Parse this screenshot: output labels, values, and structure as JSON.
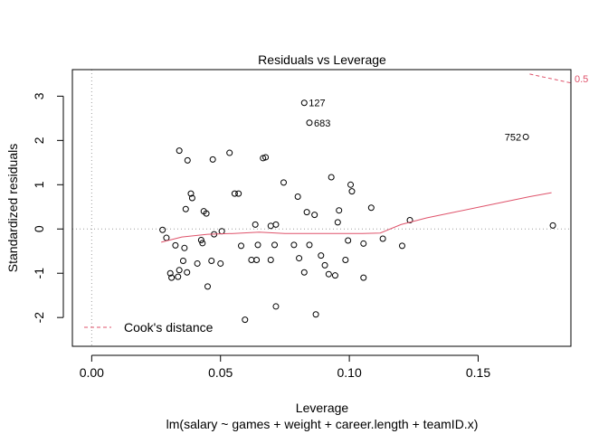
{
  "chart_data": {
    "type": "scatter",
    "title": "Residuals vs Leverage",
    "xlabel": "Leverage",
    "ylabel": "Standardized residuals",
    "subtitle": "lm(salary ~ games + weight + career.length + teamID.x)",
    "xlim": [
      -0.0075,
      0.186
    ],
    "ylim": [
      -2.65,
      3.6
    ],
    "x_ticks": [
      0.0,
      0.05,
      0.1,
      0.15
    ],
    "x_tick_labels": [
      "0.00",
      "0.05",
      "0.10",
      "0.15"
    ],
    "y_ticks": [
      -2,
      -1,
      0,
      1,
      2,
      3
    ],
    "y_tick_labels": [
      "-2",
      "-1",
      "0",
      "1",
      "2",
      "3"
    ],
    "grid": false,
    "reference_lines": {
      "horizontal_y": 0,
      "vertical_x": 0,
      "style": "dotted grey"
    },
    "legend": {
      "position": "bottom-left",
      "entries": [
        "Cook's distance"
      ]
    },
    "cooks_contour": {
      "label": "0.5",
      "color": "#DF536B",
      "points": [
        [
          0.17,
          3.5
        ],
        [
          0.186,
          3.3
        ]
      ]
    },
    "smoother": {
      "color": "#DF536B",
      "points": [
        [
          0.027,
          -0.3
        ],
        [
          0.035,
          -0.18
        ],
        [
          0.045,
          -0.12
        ],
        [
          0.055,
          -0.1
        ],
        [
          0.065,
          -0.07
        ],
        [
          0.075,
          -0.1
        ],
        [
          0.085,
          -0.1
        ],
        [
          0.095,
          -0.1
        ],
        [
          0.105,
          -0.1
        ],
        [
          0.112,
          -0.09
        ],
        [
          0.12,
          0.1
        ],
        [
          0.13,
          0.25
        ],
        [
          0.14,
          0.37
        ],
        [
          0.15,
          0.49
        ],
        [
          0.16,
          0.61
        ],
        [
          0.17,
          0.73
        ],
        [
          0.1785,
          0.82
        ]
      ]
    },
    "points": [
      [
        0.0275,
        -0.02
      ],
      [
        0.029,
        -0.2
      ],
      [
        0.0305,
        -1.0
      ],
      [
        0.031,
        -1.1
      ],
      [
        0.0325,
        -0.37
      ],
      [
        0.0335,
        -1.08
      ],
      [
        0.034,
        -0.93
      ],
      [
        0.034,
        1.77
      ],
      [
        0.0355,
        -0.72
      ],
      [
        0.036,
        -0.43
      ],
      [
        0.0365,
        0.45
      ],
      [
        0.037,
        -0.98
      ],
      [
        0.0372,
        1.55
      ],
      [
        0.0385,
        0.8
      ],
      [
        0.039,
        0.7
      ],
      [
        0.041,
        -0.78
      ],
      [
        0.0425,
        -0.25
      ],
      [
        0.043,
        -0.32
      ],
      [
        0.0435,
        0.4
      ],
      [
        0.0445,
        0.35
      ],
      [
        0.045,
        -1.3
      ],
      [
        0.0465,
        -0.72
      ],
      [
        0.047,
        1.57
      ],
      [
        0.0475,
        -0.12
      ],
      [
        0.05,
        -0.78
      ],
      [
        0.0505,
        -0.05
      ],
      [
        0.0535,
        1.72
      ],
      [
        0.0555,
        0.8
      ],
      [
        0.057,
        0.8
      ],
      [
        0.058,
        -0.38
      ],
      [
        0.0595,
        -2.05
      ],
      [
        0.062,
        -0.7
      ],
      [
        0.0635,
        0.1
      ],
      [
        0.0645,
        -0.36
      ],
      [
        0.064,
        -0.7
      ],
      [
        0.0665,
        1.6
      ],
      [
        0.0675,
        1.62
      ],
      [
        0.0695,
        -0.7
      ],
      [
        0.0695,
        0.07
      ],
      [
        0.071,
        -0.36
      ],
      [
        0.0715,
        -1.75
      ],
      [
        0.0715,
        0.1
      ],
      [
        0.0745,
        1.05
      ],
      [
        0.0785,
        -0.36
      ],
      [
        0.08,
        0.73
      ],
      [
        0.0805,
        -0.66
      ],
      [
        0.0825,
        -0.98
      ],
      [
        0.0835,
        0.38
      ],
      [
        0.0845,
        -0.36
      ],
      [
        0.0865,
        0.32
      ],
      [
        0.087,
        -1.93
      ],
      [
        0.089,
        -0.6
      ],
      [
        0.0905,
        -0.82
      ],
      [
        0.092,
        -1.02
      ],
      [
        0.093,
        1.17
      ],
      [
        0.0945,
        -1.05
      ],
      [
        0.0955,
        0.15
      ],
      [
        0.096,
        0.42
      ],
      [
        0.0985,
        -0.7
      ],
      [
        0.0995,
        -0.26
      ],
      [
        0.1005,
        1.0
      ],
      [
        0.101,
        0.85
      ],
      [
        0.1055,
        -1.1
      ],
      [
        0.1055,
        -0.33
      ],
      [
        0.1085,
        0.48
      ],
      [
        0.113,
        -0.22
      ],
      [
        0.1205,
        -0.38
      ],
      [
        0.1235,
        0.2
      ],
      [
        0.179,
        0.08
      ]
    ],
    "labeled_points": [
      {
        "label": "127",
        "x": 0.0825,
        "y": 2.85,
        "side": "right"
      },
      {
        "label": "683",
        "x": 0.0845,
        "y": 2.4,
        "side": "right"
      },
      {
        "label": "752",
        "x": 0.1685,
        "y": 2.08,
        "side": "left"
      }
    ]
  }
}
